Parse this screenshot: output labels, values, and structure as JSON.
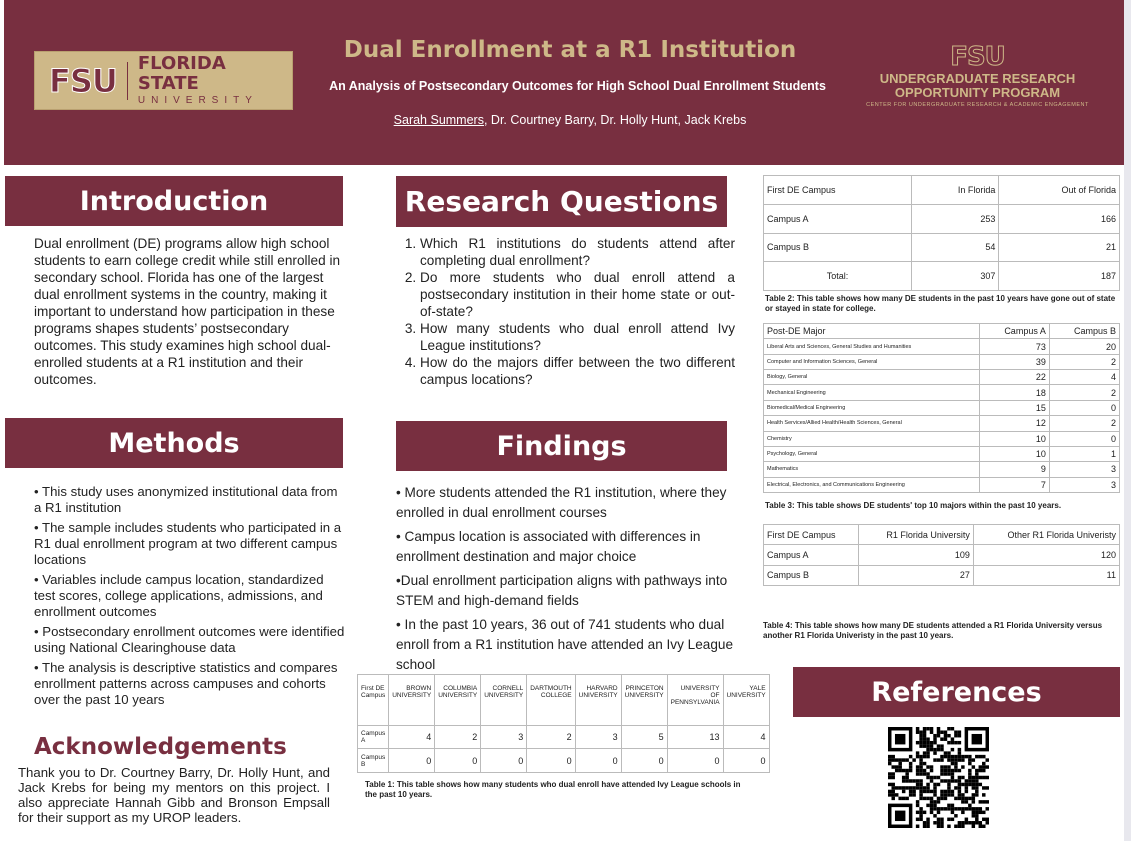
{
  "header": {
    "title": "Dual Enrollment at a R1 Institution",
    "subtitle": "An Analysis of Postsecondary Outcomes for High School Dual Enrollment Students",
    "author_main": "Sarah Summers",
    "authors_rest": ", Dr. Courtney Barry, Dr. Holly Hunt, Jack Krebs",
    "logo_left": {
      "mark": "FSU",
      "name": "FLORIDA STATE",
      "sub": "UNIVERSITY"
    },
    "logo_right": {
      "mark": "FSU",
      "line1": "UNDERGRADUATE RESEARCH",
      "line2": "OPPORTUNITY PROGRAM",
      "line3": "CENTER FOR UNDERGRADUATE RESEARCH & ACADEMIC ENGAGEMENT"
    }
  },
  "colors": {
    "maroon": "#782f40",
    "gold": "#ceb888"
  },
  "introduction": {
    "heading": "Introduction",
    "text": "Dual enrollment (DE) programs allow high school students to earn college credit while still enrolled in secondary school. Florida has one of the largest dual enrollment systems in the country, making it important to understand how participation in these programs shapes students’ postsecondary outcomes. This study examines high school dual-enrolled students at a R1 institution and their outcomes."
  },
  "methods": {
    "heading": "Methods",
    "bullets": [
      "• This study uses anonymized institutional data from a R1 institution",
      "• The sample includes students who participated in a R1 dual enrollment program at two different campus locations",
      "• Variables include campus location, standardized test scores, college applications, admissions, and enrollment outcomes",
      "• Postsecondary enrollment outcomes were identified using National Clearinghouse data",
      "• The analysis is descriptive statistics and compares enrollment patterns across campuses and cohorts over the past 10 years"
    ]
  },
  "acknowledgements": {
    "heading": "Acknowledgements",
    "text": "Thank you to Dr. Courtney Barry, Dr. Holly Hunt, and Jack Krebs for being my mentors on this project. I also appreciate Hannah Gibb and Bronson Empsall for their support as my UROP leaders."
  },
  "research_questions": {
    "heading": "Research Questions",
    "items": [
      "Which R1 institutions do students attend after completing dual enrollment?",
      "Do more students who dual enroll attend a postsecondary institution in their home state or out-of-state?",
      "How many students who dual enroll attend Ivy League institutions?",
      "How do the majors differ between the two different campus locations?"
    ]
  },
  "findings": {
    "heading": "Findings",
    "bullets": [
      "• More students attended the R1 institution, where they enrolled in dual enrollment courses",
      "• Campus location is associated with differences in enrollment destination and major choice",
      "•Dual enrollment participation aligns with pathways into STEM and high-demand fields",
      "• In the past 10 years, 36 out of 741 students who dual enroll from a R1 institution have attended an Ivy League school"
    ]
  },
  "table1": {
    "headers": [
      "First DE Campus",
      "BROWN UNIVERSITY",
      "COLUMBIA UNIVERSITY",
      "CORNELL UNIVERSITY",
      "DARTMOUTH COLLEGE",
      "HARVARD UNIVERSITY",
      "PRINCETON UNIVERSITY",
      "UNIVERSITY OF PENNSYLVANIA",
      "YALE UNIVERSITY"
    ],
    "rows": [
      [
        "Campus A",
        "4",
        "2",
        "3",
        "2",
        "3",
        "5",
        "13",
        "4"
      ],
      [
        "Campus B",
        "0",
        "0",
        "0",
        "0",
        "0",
        "0",
        "0",
        "0"
      ]
    ],
    "caption": "Table 1: This table shows how many students who dual enroll have attended Ivy League schools in the past 10 years."
  },
  "table2": {
    "headers": [
      "First DE Campus",
      "In Florida",
      "Out of Florida"
    ],
    "rows": [
      [
        "Campus A",
        "253",
        "166"
      ],
      [
        "Campus B",
        "54",
        "21"
      ],
      [
        "Total:",
        "307",
        "187"
      ]
    ],
    "caption": "Table 2:  This table shows how many DE students in the past 10 years have gone out of state or stayed in state for college."
  },
  "table3": {
    "headers": [
      "Post-DE Major",
      "Campus A",
      "Campus B"
    ],
    "rows": [
      [
        "Liberal Arts and Sciences, General Studies and Humanities",
        "73",
        "20"
      ],
      [
        "Computer and Information Sciences, General",
        "39",
        "2"
      ],
      [
        "Biology, General",
        "22",
        "4"
      ],
      [
        "Mechanical Engineering",
        "18",
        "2"
      ],
      [
        "Biomedical/Medical Engineering",
        "15",
        "0"
      ],
      [
        "Health Services/Allied Health/Health Sciences, General",
        "12",
        "2"
      ],
      [
        "Chemistry",
        "10",
        "0"
      ],
      [
        "Psychology, General",
        "10",
        "1"
      ],
      [
        "Mathematics",
        "9",
        "3"
      ],
      [
        "Electrical, Electronics, and Communications Engineering",
        "7",
        "3"
      ]
    ],
    "caption": "Table 3: This table shows DE students' top 10 majors within the past 10 years."
  },
  "table4": {
    "headers": [
      "First DE Campus",
      "R1 Florida University",
      "Other R1 Florida Univeristy"
    ],
    "rows": [
      [
        "Campus A",
        "109",
        "120"
      ],
      [
        "Campus B",
        "27",
        "11"
      ]
    ],
    "caption": "Table 4: This table shows how many DE students attended a R1 Florida University versus another R1 Florida Univeristy in the past 10 years."
  },
  "references": {
    "heading": "References"
  }
}
